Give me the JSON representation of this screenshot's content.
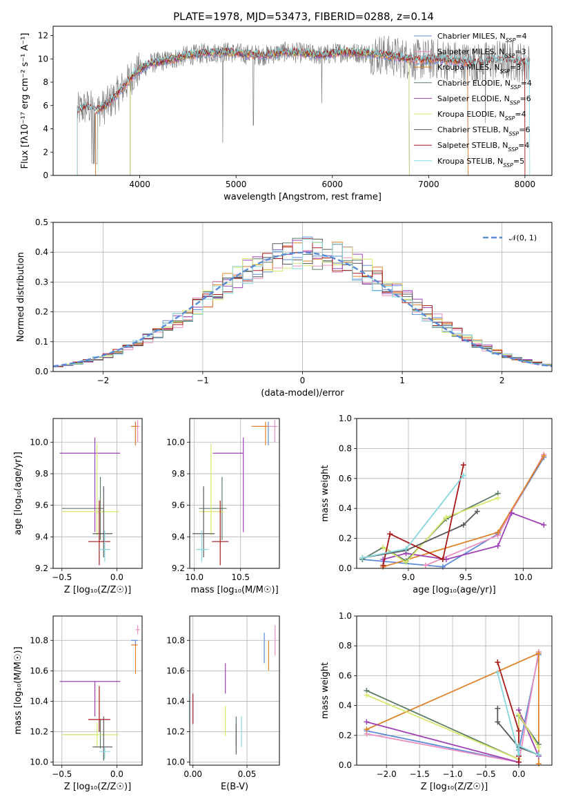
{
  "figure": {
    "title": "PLATE=1978, MJD=53473, FIBERID=0288, z=0.14"
  },
  "colors": {
    "Chabrier MILES": "#5b8bd6",
    "Salpeter MILES": "#e98ec0",
    "Kroupa MILES": "#e08128",
    "Chabrier ELODIE": "#5c7c63",
    "Salpeter ELODIE": "#9d3fb5",
    "Kroupa ELODIE": "#d8e86a",
    "Chabrier STELIB": "#575757",
    "Salpeter STELIB": "#a81818",
    "Kroupa STELIB": "#86d8de",
    "data": "#7f7f7f",
    "normal": "#5b8bd6"
  },
  "chart_data": [
    {
      "id": "spectrum",
      "type": "line",
      "title": "PLATE=1978, MJD=53473, FIBERID=0288, z=0.14",
      "xlabel": "wavelength [Angstrom, rest frame]",
      "ylabel": "Flux [fλ10⁻¹⁷ erg cm⁻² s⁻¹ A⁻¹]",
      "xlim": [
        3100,
        8280
      ],
      "ylim": [
        0,
        12.8
      ],
      "xticks": [
        4000,
        5000,
        6000,
        7000,
        8000
      ],
      "yticks": [
        0,
        2,
        4,
        6,
        8,
        10,
        12
      ],
      "legend": [
        "Chabrier MILES, N_SSP=4",
        "Salpeter MILES, N_SSP=3",
        "Kroupa MILES, N_SSP=3",
        "Chabrier ELODIE, N_SSP=4",
        "Salpeter ELODIE, N_SSP=6",
        "Kroupa ELODIE, N_SSP=4",
        "Chabrier STELIB, N_SSP=6",
        "Salpeter STELIB, N_SSP=4",
        "Kroupa STELIB, N_SSP=5"
      ],
      "legend_placement": "right",
      "continuum": [
        [
          3350,
          5.5
        ],
        [
          3450,
          5.9
        ],
        [
          3550,
          5.6
        ],
        [
          3650,
          6.0
        ],
        [
          3750,
          6.8
        ],
        [
          3850,
          7.8
        ],
        [
          3950,
          8.8
        ],
        [
          4100,
          9.6
        ],
        [
          4300,
          9.9
        ],
        [
          4500,
          10.3
        ],
        [
          4700,
          10.5
        ],
        [
          4900,
          10.6
        ],
        [
          5100,
          10.4
        ],
        [
          5300,
          10.3
        ],
        [
          5500,
          10.6
        ],
        [
          5700,
          10.5
        ],
        [
          5900,
          10.3
        ],
        [
          6100,
          10.6
        ],
        [
          6300,
          10.5
        ],
        [
          6500,
          10.4
        ],
        [
          6700,
          10.1
        ],
        [
          6900,
          9.9
        ],
        [
          7100,
          10.0
        ],
        [
          7300,
          9.8
        ],
        [
          7500,
          9.6
        ],
        [
          7700,
          9.9
        ],
        [
          7900,
          9.8
        ],
        [
          8050,
          9.6
        ]
      ],
      "grid": false
    },
    {
      "id": "residuals",
      "type": "line",
      "xlabel": "(data-model)/error",
      "ylabel": "Normed distribution",
      "xlim": [
        -2.5,
        2.5
      ],
      "ylim": [
        0,
        0.5
      ],
      "xticks": [
        -2,
        -1,
        0,
        1,
        2
      ],
      "yticks": [
        0.0,
        0.1,
        0.2,
        0.3,
        0.4,
        0.5
      ],
      "legend": [
        "𝒩(0, 1)"
      ],
      "legend_placement": "top-right",
      "grid": true
    },
    {
      "id": "age-vs-z",
      "type": "scatter",
      "xlabel": "Z [log₁₀(Z/Z☉)]",
      "ylabel": "age  [log₁₀(age/yr)]",
      "xlim": [
        -0.58,
        0.23
      ],
      "ylim": [
        9.2,
        10.15
      ],
      "xticks": [
        -0.5,
        0.0
      ],
      "yticks": [
        9.2,
        9.4,
        9.6,
        9.8,
        10.0
      ],
      "grid": true,
      "points": [
        {
          "model": "Chabrier MILES",
          "x": 0.17,
          "y": 10.1
        },
        {
          "model": "Salpeter MILES",
          "x": 0.19,
          "y": 10.1
        },
        {
          "model": "Kroupa MILES",
          "x": 0.17,
          "y": 10.1
        },
        {
          "model": "Chabrier ELODIE",
          "x": -0.15,
          "y": 9.58
        },
        {
          "model": "Salpeter ELODIE",
          "x": -0.2,
          "y": 9.93
        },
        {
          "model": "Kroupa ELODIE",
          "x": -0.18,
          "y": 9.56
        },
        {
          "model": "Chabrier STELIB",
          "x": -0.12,
          "y": 9.42
        },
        {
          "model": "Salpeter STELIB",
          "x": -0.16,
          "y": 9.37
        },
        {
          "model": "Kroupa STELIB",
          "x": -0.11,
          "y": 9.32
        }
      ]
    },
    {
      "id": "age-vs-mass",
      "type": "scatter",
      "xlabel": "mass [log₁₀(M/M☉)]",
      "xlim": [
        9.95,
        10.92
      ],
      "ylim": [
        9.2,
        10.15
      ],
      "xticks": [
        10.0,
        10.5
      ],
      "yticks": [
        9.2,
        9.4,
        9.6,
        9.8,
        10.0
      ],
      "grid": true,
      "points": [
        {
          "model": "Chabrier MILES",
          "x": 10.8,
          "y": 10.1
        },
        {
          "model": "Salpeter MILES",
          "x": 10.87,
          "y": 10.1
        },
        {
          "model": "Kroupa MILES",
          "x": 10.77,
          "y": 10.1
        },
        {
          "model": "Chabrier ELODIE",
          "x": 10.3,
          "y": 9.58
        },
        {
          "model": "Salpeter ELODIE",
          "x": 10.53,
          "y": 9.93
        },
        {
          "model": "Kroupa ELODIE",
          "x": 10.18,
          "y": 9.56
        },
        {
          "model": "Chabrier STELIB",
          "x": 10.1,
          "y": 9.42
        },
        {
          "model": "Salpeter STELIB",
          "x": 10.28,
          "y": 9.37
        },
        {
          "model": "Kroupa STELIB",
          "x": 10.08,
          "y": 9.32
        }
      ]
    },
    {
      "id": "weight-vs-age",
      "type": "line",
      "xlabel": "age  [log₁₀(age/yr)]",
      "ylabel": "mass weight",
      "xlim": [
        8.55,
        10.25
      ],
      "ylim": [
        0,
        1.0
      ],
      "xticks": [
        9.0,
        9.5,
        10.0
      ],
      "yticks": [
        0.0,
        0.2,
        0.4,
        0.6,
        0.8,
        1.0
      ],
      "grid": true,
      "series": [
        {
          "name": "Chabrier MILES",
          "x": [
            8.6,
            9.3,
            9.78,
            10.18
          ],
          "y": [
            0.06,
            0.01,
            0.23,
            0.74
          ]
        },
        {
          "name": "Salpeter MILES",
          "x": [
            9.15,
            9.78,
            10.18
          ],
          "y": [
            0.02,
            0.22,
            0.76
          ]
        },
        {
          "name": "Kroupa MILES",
          "x": [
            8.78,
            9.78,
            10.18
          ],
          "y": [
            0.01,
            0.24,
            0.75
          ]
        },
        {
          "name": "Chabrier ELODIE",
          "x": [
            8.6,
            8.78,
            8.98,
            9.33,
            9.78
          ],
          "y": [
            0.06,
            0.14,
            0.05,
            0.33,
            0.5
          ]
        },
        {
          "name": "Salpeter ELODIE",
          "x": [
            8.78,
            8.98,
            9.33,
            9.78,
            9.9,
            10.18
          ],
          "y": [
            0.06,
            0.1,
            0.06,
            0.15,
            0.37,
            0.29
          ]
        },
        {
          "name": "Kroupa ELODIE",
          "x": [
            8.78,
            8.98,
            9.33,
            9.78
          ],
          "y": [
            0.14,
            0.04,
            0.34,
            0.47
          ]
        },
        {
          "name": "Chabrier STELIB",
          "x": [
            8.6,
            8.98,
            9.48,
            9.6
          ],
          "y": [
            0.07,
            0.12,
            0.29,
            0.38
          ]
        },
        {
          "name": "Salpeter STELIB",
          "x": [
            8.78,
            8.84,
            9.3,
            9.48
          ],
          "y": [
            0.02,
            0.23,
            0.06,
            0.69
          ]
        },
        {
          "name": "Kroupa STELIB",
          "x": [
            8.6,
            8.98,
            9.48
          ],
          "y": [
            0.07,
            0.13,
            0.62
          ]
        }
      ]
    },
    {
      "id": "mass-vs-z",
      "type": "scatter",
      "xlabel": "Z [log₁₀(Z/Z☉)]",
      "ylabel": "mass [log₁₀(M/M☉)]",
      "xlim": [
        -0.58,
        0.23
      ],
      "ylim": [
        9.98,
        10.96
      ],
      "xticks": [
        -0.5,
        0.0
      ],
      "yticks": [
        10.0,
        10.2,
        10.4,
        10.6,
        10.8
      ],
      "grid": true,
      "points": [
        {
          "model": "Chabrier MILES",
          "x": 0.17,
          "y": 10.8
        },
        {
          "model": "Salpeter MILES",
          "x": 0.19,
          "y": 10.87
        },
        {
          "model": "Kroupa MILES",
          "x": 0.17,
          "y": 10.77
        },
        {
          "model": "Chabrier ELODIE",
          "x": -0.15,
          "y": 10.18
        },
        {
          "model": "Salpeter ELODIE",
          "x": -0.2,
          "y": 10.53
        },
        {
          "model": "Kroupa ELODIE",
          "x": -0.18,
          "y": 10.18
        },
        {
          "model": "Chabrier STELIB",
          "x": -0.12,
          "y": 10.1
        },
        {
          "model": "Salpeter STELIB",
          "x": -0.16,
          "y": 10.28
        },
        {
          "model": "Kroupa STELIB",
          "x": -0.11,
          "y": 10.07
        }
      ]
    },
    {
      "id": "mass-vs-ebv",
      "type": "scatter",
      "xlabel": "E(B-V)",
      "xlim": [
        -0.003,
        0.08
      ],
      "ylim": [
        9.98,
        10.96
      ],
      "xticks": [
        0.0,
        0.05
      ],
      "yticks": [
        10.0,
        10.2,
        10.4,
        10.6,
        10.8
      ],
      "grid": true,
      "points": [
        {
          "model": "Chabrier MILES",
          "x": 0.066,
          "y": 10.75
        },
        {
          "model": "Salpeter MILES",
          "x": 0.076,
          "y": 10.8
        },
        {
          "model": "Kroupa MILES",
          "x": 0.07,
          "y": 10.7
        },
        {
          "model": "Chabrier ELODIE",
          "x": 0.04,
          "y": 10.2
        },
        {
          "model": "Salpeter ELODIE",
          "x": 0.03,
          "y": 10.55
        },
        {
          "model": "Kroupa ELODIE",
          "x": 0.03,
          "y": 10.27
        },
        {
          "model": "Chabrier STELIB",
          "x": 0.04,
          "y": 10.15
        },
        {
          "model": "Salpeter STELIB",
          "x": 0.0,
          "y": 10.35
        },
        {
          "model": "Kroupa STELIB",
          "x": 0.045,
          "y": 10.2
        }
      ]
    },
    {
      "id": "weight-vs-z",
      "type": "line",
      "xlabel": "Z [log₁₀(Z/Z☉)]",
      "ylabel": "mass weight",
      "xlim": [
        -2.45,
        0.5
      ],
      "ylim": [
        0,
        1.0
      ],
      "xticks": [
        -2.0,
        -1.5,
        -1.0,
        -0.5,
        0.0
      ],
      "yticks": [
        0.0,
        0.2,
        0.4,
        0.6,
        0.8,
        1.0
      ],
      "grid": true,
      "series": [
        {
          "name": "Chabrier MILES",
          "x": [
            -2.3,
            0.0,
            0.0,
            0.3
          ],
          "y": [
            0.23,
            0.02,
            0.1,
            0.74
          ]
        },
        {
          "name": "Salpeter MILES",
          "x": [
            -2.3,
            0.0,
            0.3
          ],
          "y": [
            0.21,
            0.02,
            0.76
          ]
        },
        {
          "name": "Kroupa MILES",
          "x": [
            -2.3,
            0.3,
            0.3
          ],
          "y": [
            0.24,
            0.75,
            0.01
          ]
        },
        {
          "name": "Chabrier ELODIE",
          "x": [
            -2.3,
            0.0,
            0.0,
            0.3
          ],
          "y": [
            0.5,
            0.04,
            0.33,
            0.14
          ]
        },
        {
          "name": "Salpeter ELODIE",
          "x": [
            -2.3,
            0.0,
            0.0,
            0.3
          ],
          "y": [
            0.29,
            0.02,
            0.37,
            0.06
          ]
        },
        {
          "name": "Kroupa ELODIE",
          "x": [
            -2.3,
            0.0,
            0.0,
            0.3
          ],
          "y": [
            0.47,
            0.04,
            0.34,
            0.12
          ]
        },
        {
          "name": "Chabrier STELIB",
          "x": [
            -0.32,
            -0.32,
            0.0,
            0.3
          ],
          "y": [
            0.38,
            0.29,
            0.12,
            0.07
          ]
        },
        {
          "name": "Salpeter STELIB",
          "x": [
            -0.32,
            0.0,
            0.0,
            0.0
          ],
          "y": [
            0.69,
            0.23,
            0.06,
            0.02
          ]
        },
        {
          "name": "Kroupa STELIB",
          "x": [
            -0.32,
            0.0,
            0.0,
            0.3
          ],
          "y": [
            0.62,
            0.07,
            0.13,
            0.07
          ]
        }
      ]
    }
  ]
}
